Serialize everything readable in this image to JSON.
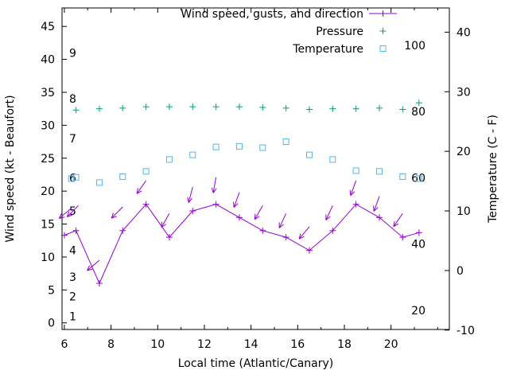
{
  "chart_data": {
    "type": "line",
    "title": "",
    "xlabel": "Local time (Atlantic/Canary)",
    "ylabel_left": "Wind speed (kt - Beaufort)",
    "ylabel_right": "Temperature (C - F)",
    "x_range": [
      5.9,
      22.5
    ],
    "y_range": [
      -1,
      47.8
    ],
    "x_ticks": [
      6,
      8,
      10,
      12,
      14,
      16,
      18,
      20
    ],
    "x_minor_step": 1,
    "y_ticks_left": [
      0,
      5,
      10,
      15,
      20,
      25,
      30,
      35,
      40,
      45
    ],
    "right_axis": {
      "ticks": [
        -10,
        0,
        10,
        20,
        30,
        40
      ],
      "offset": 7.95,
      "scale": 0.9045
    },
    "beaufort_labels": [
      {
        "label": "1",
        "kt": 1
      },
      {
        "label": "2",
        "kt": 4
      },
      {
        "label": "3",
        "kt": 7
      },
      {
        "label": "4",
        "kt": 11
      },
      {
        "label": "5",
        "kt": 17
      },
      {
        "label": "6",
        "kt": 22
      },
      {
        "label": "7",
        "kt": 28
      },
      {
        "label": "8",
        "kt": 34
      },
      {
        "label": "9",
        "kt": 41
      }
    ],
    "fahrenheit_labels": [
      20,
      40,
      60,
      80,
      100
    ],
    "legend": {
      "position": "top-center",
      "entries": [
        {
          "label": "Wind speed, gusts, and direction",
          "series": "wind",
          "marker": "plus-line",
          "color": "#9400d3"
        },
        {
          "label": "Pressure",
          "series": "pressure",
          "marker": "plus",
          "color": "#009e73"
        },
        {
          "label": "Temperature",
          "series": "temperature",
          "marker": "square",
          "color": "#56b4e9"
        }
      ]
    },
    "series": {
      "wind_speed": {
        "color": "#9400d3",
        "x": [
          6.0,
          6.5,
          7.5,
          8.5,
          9.5,
          10.5,
          11.5,
          12.5,
          13.5,
          14.5,
          15.5,
          16.5,
          17.5,
          18.5,
          19.5,
          20.5,
          21.2
        ],
        "y": [
          13.3,
          14.0,
          6.0,
          14.0,
          18.0,
          13.0,
          17.0,
          18.0,
          16.0,
          14.0,
          13.0,
          11.0,
          14.0,
          18.0,
          16.0,
          13.0,
          13.7
        ]
      },
      "gusts": {
        "color": "#9400d3",
        "points": [
          {
            "x": 6.3,
            "v": 17.4,
            "a": 140
          },
          {
            "x": 6.6,
            "v": 17.8,
            "a": 135
          },
          {
            "x": 7.5,
            "v": 9.5,
            "a": 140
          },
          {
            "x": 8.5,
            "v": 17.6,
            "a": 135
          },
          {
            "x": 9.5,
            "v": 21.6,
            "a": 125
          },
          {
            "x": 10.5,
            "v": 16.6,
            "a": 120
          },
          {
            "x": 11.5,
            "v": 20.6,
            "a": 105
          },
          {
            "x": 12.5,
            "v": 22.1,
            "a": 100
          },
          {
            "x": 13.5,
            "v": 19.8,
            "a": 110
          },
          {
            "x": 14.5,
            "v": 17.8,
            "a": 120
          },
          {
            "x": 15.5,
            "v": 16.6,
            "a": 115
          },
          {
            "x": 16.5,
            "v": 14.6,
            "a": 130
          },
          {
            "x": 17.5,
            "v": 17.8,
            "a": 115
          },
          {
            "x": 18.5,
            "v": 21.6,
            "a": 110
          },
          {
            "x": 19.5,
            "v": 19.2,
            "a": 110
          },
          {
            "x": 20.5,
            "v": 16.6,
            "a": 125
          }
        ]
      },
      "pressure": {
        "color": "#009e73",
        "x": [
          6.5,
          7.5,
          8.5,
          9.5,
          10.5,
          11.5,
          12.5,
          13.5,
          14.5,
          15.5,
          16.5,
          17.5,
          18.5,
          19.5,
          20.5,
          21.2
        ],
        "y": [
          32.3,
          32.5,
          32.6,
          32.8,
          32.8,
          32.8,
          32.8,
          32.8,
          32.7,
          32.6,
          32.4,
          32.5,
          32.5,
          32.6,
          32.4,
          33.4
        ]
      },
      "temperature": {
        "color": "#56b4e9",
        "x": [
          6.3,
          6.5,
          7.5,
          8.5,
          9.5,
          10.5,
          11.5,
          12.5,
          13.5,
          14.5,
          15.5,
          16.5,
          17.5,
          18.5,
          19.5,
          20.5,
          21.2
        ],
        "y": [
          21.9,
          22.1,
          21.3,
          22.2,
          23.0,
          24.8,
          25.5,
          26.7,
          26.8,
          26.6,
          27.5,
          25.5,
          24.8,
          23.1,
          23.0,
          22.2,
          21.9
        ]
      }
    }
  }
}
